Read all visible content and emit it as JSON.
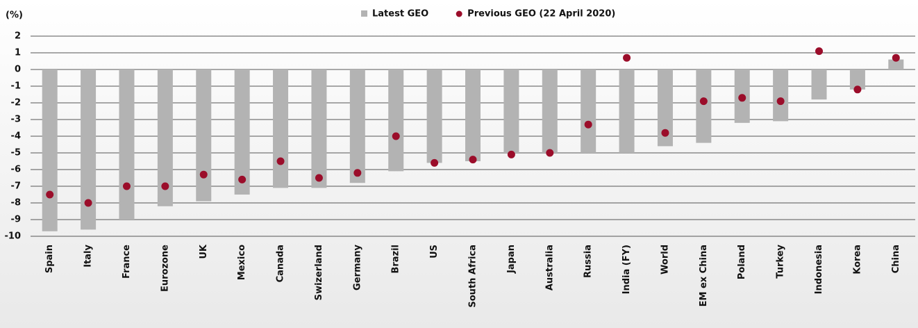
{
  "chart_data": {
    "type": "bar",
    "y_axis_label": "(%)",
    "categories": [
      "Spain",
      "Italy",
      "France",
      "Eurozone",
      "UK",
      "Mexico",
      "Canada",
      "Swizerland",
      "Germany",
      "Brazil",
      "US",
      "South Africa",
      "Japan",
      "Australia",
      "Russia",
      "India (FY)",
      "World",
      "EM ex China",
      "Poland",
      "Turkey",
      "Indonesia",
      "Korea",
      "China"
    ],
    "series": [
      {
        "name": "Latest GEO",
        "color": "#b3b3b3",
        "kind": "bar",
        "values": [
          -9.7,
          -9.6,
          -9.0,
          -8.2,
          -7.9,
          -7.5,
          -7.1,
          -7.1,
          -6.8,
          -6.1,
          -5.6,
          -5.5,
          -5.0,
          -5.0,
          -5.0,
          -5.0,
          -4.6,
          -4.4,
          -3.2,
          -3.1,
          -1.8,
          -1.2,
          0.6
        ]
      },
      {
        "name": "Previous GEO (22 April 2020)",
        "color": "#9b0d2a",
        "kind": "dot",
        "values": [
          -7.5,
          -8.0,
          -7.0,
          -7.0,
          -6.3,
          -6.6,
          -5.5,
          -6.5,
          -6.2,
          -4.0,
          -5.6,
          -5.4,
          -5.1,
          -5.0,
          -3.3,
          0.7,
          -3.8,
          -1.9,
          -1.7,
          -1.9,
          1.1,
          -1.2,
          0.7
        ]
      }
    ],
    "ylim": [
      -10,
      2
    ],
    "yticks": [
      2,
      1,
      0,
      -1,
      -2,
      -3,
      -4,
      -5,
      -6,
      -7,
      -8,
      -9,
      -10
    ],
    "grid": true
  }
}
